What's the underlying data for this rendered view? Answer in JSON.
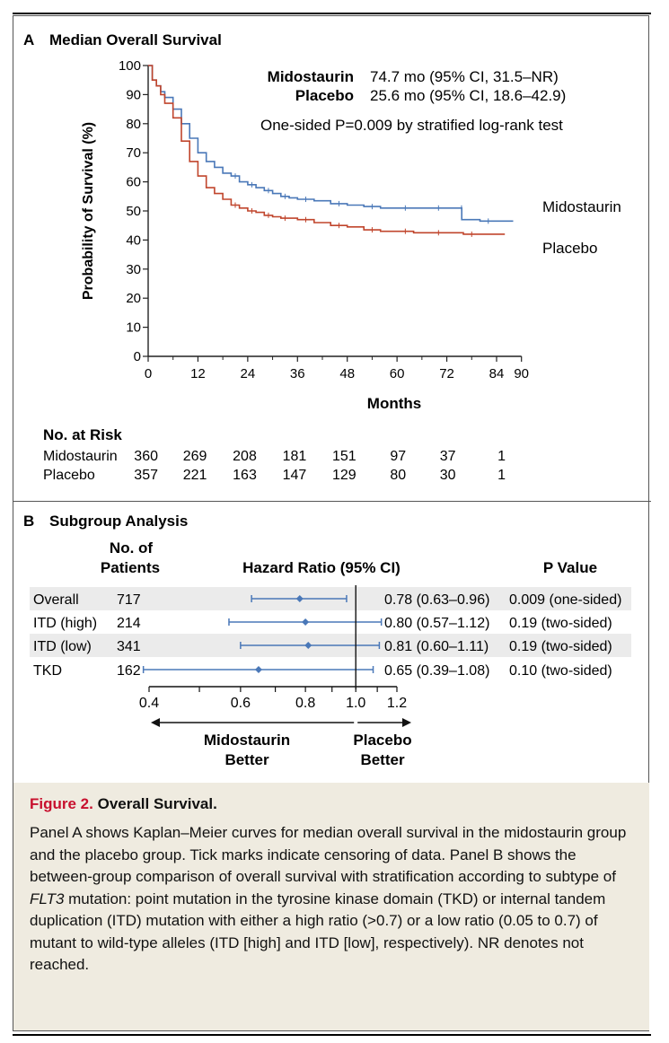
{
  "panel_a": {
    "letter": "A",
    "title": "Median Overall Survival",
    "legend": {
      "mido_name": "Midostaurin",
      "mido_value": "74.7 mo (95% CI, 31.5–NR)",
      "placebo_name": "Placebo",
      "placebo_value": "25.6 mo (95% CI, 18.6–42.9)",
      "pvalue_text": "One-sided P=0.009 by stratified log-rank test"
    },
    "curve_label_mido": "Midostaurin",
    "curve_label_placebo": "Placebo",
    "at_risk": {
      "title": "No. at Risk",
      "rows": [
        {
          "name": "Midostaurin",
          "values": [
            "360",
            "269",
            "208",
            "181",
            "151",
            "97",
            "37",
            "1"
          ]
        },
        {
          "name": "Placebo",
          "values": [
            "357",
            "221",
            "163",
            "147",
            "129",
            "80",
            "30",
            "1"
          ]
        }
      ]
    }
  },
  "panel_b": {
    "letter": "B",
    "title": "Subgroup Analysis",
    "col_patients_line1": "No. of",
    "col_patients_line2": "Patients",
    "col_hr": "Hazard Ratio (95% CI)",
    "col_p": "P Value",
    "rows": [
      {
        "label": "Overall",
        "n": "717",
        "hr_text": "0.78 (0.63–0.96)",
        "p_text": "0.009 (one-sided)"
      },
      {
        "label": "ITD (high)",
        "n": "214",
        "hr_text": "0.80 (0.57–1.12)",
        "p_text": "0.19 (two-sided)"
      },
      {
        "label": "ITD (low)",
        "n": "341",
        "hr_text": "0.81 (0.60–1.11)",
        "p_text": "0.19 (two-sided)"
      },
      {
        "label": "TKD",
        "n": "162",
        "hr_text": "0.65 (0.39–1.08)",
        "p_text": "0.10 (two-sided)"
      }
    ],
    "better_left_1": "Midostaurin",
    "better_left_2": "Better",
    "better_right_1": "Placebo",
    "better_right_2": "Better"
  },
  "caption": {
    "fig_label": "Figure 2.",
    "fig_title": "Overall Survival.",
    "body_1": "Panel A shows Kaplan–Meier curves for median overall survival in the midostaurin group and the placebo group. Tick marks indicate censoring of data. Panel B shows the between-group comparison of overall survival with stratification according to subtype of ",
    "body_italic": "FLT3",
    "body_2": " mutation: point mutation in the tyrosine kinase domain (TKD) or internal tandem duplication (ITD) mutation with either a high ratio (>0.7) or a low ratio (0.05 to 0.7) of mutant to wild-type alleles (ITD [high] and ITD [low], respectively). NR denotes not reached."
  },
  "colors": {
    "midostaurin": "#4a78b8",
    "placebo": "#c0452c",
    "row_shade": "#ebebeb"
  },
  "chart_data": [
    {
      "type": "line",
      "title": "Median Overall Survival",
      "xlabel": "Months",
      "ylabel": "Probability of Survival (%)",
      "xlim": [
        0,
        90
      ],
      "ylim": [
        0,
        100
      ],
      "x_ticks": [
        0,
        12,
        24,
        36,
        48,
        60,
        72,
        84,
        90
      ],
      "y_ticks": [
        0,
        10,
        20,
        30,
        40,
        50,
        60,
        70,
        80,
        90,
        100
      ],
      "grid": false,
      "series": [
        {
          "name": "Midostaurin",
          "color": "#4a78b8",
          "x": [
            0,
            1,
            2,
            3,
            4,
            6,
            8,
            10,
            12,
            14,
            16,
            18,
            20,
            22,
            24,
            26,
            28,
            30,
            32,
            34,
            36,
            40,
            44,
            48,
            52,
            56,
            60,
            64,
            68,
            72,
            75.5,
            75.6,
            80,
            84,
            88
          ],
          "y": [
            100,
            95,
            93,
            91,
            89,
            85,
            80,
            75,
            70,
            67,
            65,
            63,
            62,
            60,
            59,
            58,
            57,
            56,
            55,
            54.5,
            54,
            53.5,
            52.5,
            52,
            51.5,
            51,
            51,
            51,
            51,
            51,
            51,
            47,
            46.5,
            46.5,
            46.5
          ]
        },
        {
          "name": "Placebo",
          "color": "#c0452c",
          "x": [
            0,
            1,
            2,
            3,
            4,
            6,
            8,
            10,
            12,
            14,
            16,
            18,
            20,
            22,
            24,
            26,
            28,
            30,
            32,
            34,
            36,
            40,
            44,
            48,
            52,
            56,
            60,
            64,
            68,
            72,
            76,
            80,
            86
          ],
          "y": [
            100,
            95,
            93,
            90,
            87,
            82,
            74,
            67,
            62,
            58,
            56,
            54,
            52,
            51,
            50,
            49.5,
            48.5,
            48,
            47.5,
            47.5,
            47,
            46,
            45,
            44.5,
            43.5,
            43,
            43,
            42.5,
            42.5,
            42.5,
            42,
            42,
            42
          ]
        }
      ]
    },
    {
      "type": "scatter",
      "title": "Subgroup Analysis",
      "xlabel": "Hazard Ratio (95% CI)",
      "xlim": [
        0.4,
        1.2
      ],
      "x_ticks": [
        0.4,
        0.6,
        0.8,
        1.0,
        1.2
      ],
      "scale": "log",
      "categories": [
        "Overall",
        "ITD (high)",
        "ITD (low)",
        "TKD"
      ],
      "estimates": [
        0.78,
        0.8,
        0.81,
        0.65
      ],
      "ci_lower": [
        0.63,
        0.57,
        0.6,
        0.39
      ],
      "ci_upper": [
        0.96,
        1.12,
        1.11,
        1.08
      ]
    }
  ]
}
